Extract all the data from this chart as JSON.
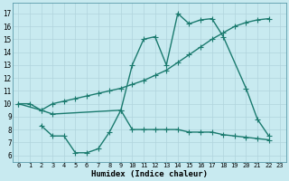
{
  "line1_x": [
    0,
    1,
    2,
    3,
    9,
    10,
    11,
    12,
    13,
    14,
    15,
    16,
    17,
    18,
    20,
    21,
    22
  ],
  "line1_y": [
    10,
    10,
    9.5,
    9.2,
    9.5,
    13.0,
    15.0,
    15.2,
    13.0,
    17.0,
    16.2,
    16.5,
    16.6,
    15.2,
    11.2,
    8.8,
    7.5
  ],
  "line2_x": [
    0,
    2,
    3,
    4,
    5,
    6,
    7,
    8,
    9,
    10,
    11,
    12,
    13,
    14,
    15,
    16,
    17,
    18,
    19,
    20,
    21,
    22
  ],
  "line2_y": [
    10,
    9.5,
    10.0,
    10.2,
    10.4,
    10.6,
    10.8,
    11.0,
    11.2,
    11.5,
    11.8,
    12.2,
    12.6,
    13.2,
    13.8,
    14.4,
    15.0,
    15.5,
    16.0,
    16.3,
    16.5,
    16.6
  ],
  "line3_x": [
    2,
    3,
    4,
    5,
    6,
    7,
    8,
    9,
    10,
    11,
    12,
    13,
    14,
    15,
    16,
    17,
    18,
    19,
    20,
    21,
    22
  ],
  "line3_y": [
    8.3,
    7.5,
    7.5,
    6.2,
    6.2,
    6.5,
    7.8,
    9.5,
    8.0,
    8.0,
    8.0,
    8.0,
    8.0,
    7.8,
    7.8,
    7.8,
    7.6,
    7.5,
    7.4,
    7.3,
    7.2
  ],
  "color": "#1a7a6e",
  "bg_color": "#c8eaf0",
  "grid_color": "#b0d4dc",
  "xlabel": "Humidex (Indice chaleur)",
  "ylim": [
    5.5,
    17.8
  ],
  "xlim": [
    -0.5,
    23.5
  ],
  "yticks": [
    6,
    7,
    8,
    9,
    10,
    11,
    12,
    13,
    14,
    15,
    16,
    17
  ],
  "xticks": [
    0,
    1,
    2,
    3,
    4,
    5,
    6,
    7,
    8,
    9,
    10,
    11,
    12,
    13,
    14,
    15,
    16,
    17,
    18,
    19,
    20,
    21,
    22,
    23
  ],
  "marker_size": 2.2,
  "line_width": 1.0
}
